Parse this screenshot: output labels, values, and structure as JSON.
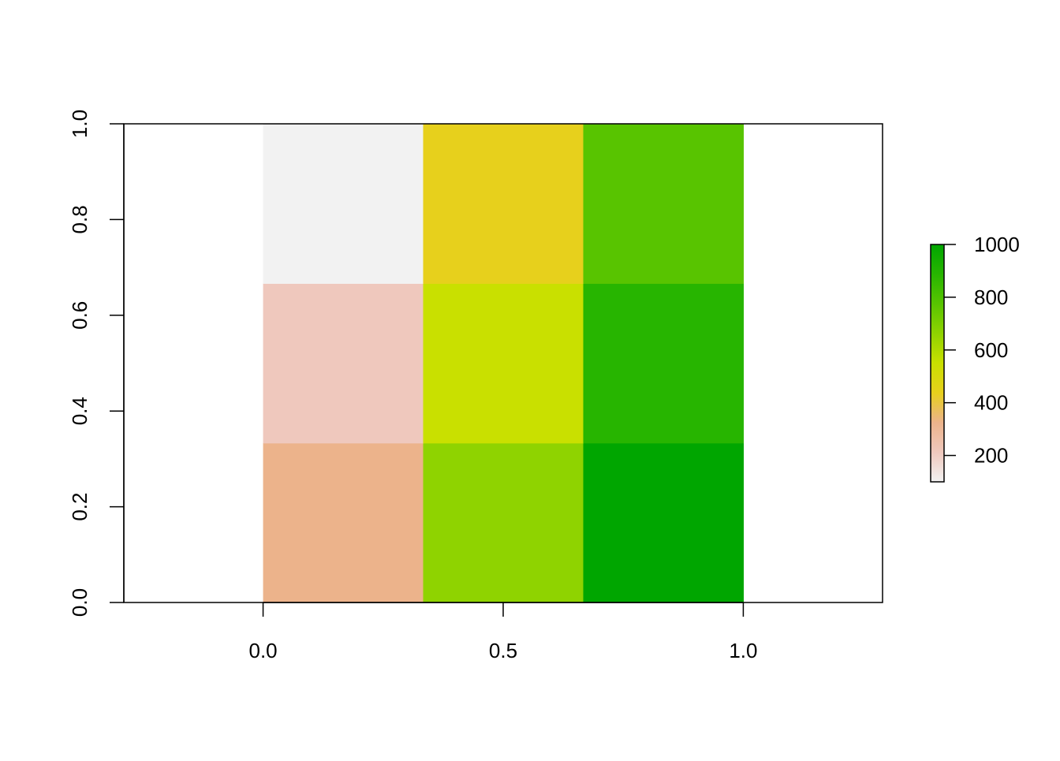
{
  "chart_data": {
    "type": "heatmap",
    "title": "",
    "xlabel": "",
    "ylabel": "",
    "xlim": [
      -0.29,
      1.29
    ],
    "ylim": [
      0,
      1
    ],
    "x_ticks": [
      "0.0",
      "0.5",
      "1.0"
    ],
    "x_tick_values": [
      0,
      0.5,
      1
    ],
    "y_ticks": [
      "0.0",
      "0.2",
      "0.4",
      "0.6",
      "0.8",
      "1.0"
    ],
    "y_tick_values": [
      0,
      0.2,
      0.4,
      0.6,
      0.8,
      1
    ],
    "grid": false,
    "x_edges": [
      0,
      0.3333,
      0.6667,
      1
    ],
    "y_edges": [
      0,
      0.3333,
      0.6667,
      1
    ],
    "cells": [
      {
        "row": 0,
        "col": 0,
        "value": 300,
        "color": "#ecb38b"
      },
      {
        "row": 0,
        "col": 1,
        "value": 800,
        "color": "#8fd300"
      },
      {
        "row": 0,
        "col": 2,
        "value": 1000,
        "color": "#00a600"
      },
      {
        "row": 1,
        "col": 0,
        "value": 200,
        "color": "#efc8bd"
      },
      {
        "row": 1,
        "col": 1,
        "value": 600,
        "color": "#c9e000"
      },
      {
        "row": 1,
        "col": 2,
        "value": 900,
        "color": "#27b500"
      },
      {
        "row": 2,
        "col": 0,
        "value": 100,
        "color": "#f2f2f2"
      },
      {
        "row": 2,
        "col": 1,
        "value": 500,
        "color": "#e7d01c"
      },
      {
        "row": 2,
        "col": 2,
        "value": 800,
        "color": "#58c400"
      }
    ],
    "legend": {
      "placement": "right",
      "range": [
        100,
        1000
      ],
      "ticks": [
        "200",
        "400",
        "600",
        "800",
        "1000"
      ],
      "tick_values": [
        200,
        400,
        600,
        800,
        1000
      ],
      "gradient": [
        "#f2f2f2",
        "#efc8bd",
        "#ecb38b",
        "#e7d01c",
        "#c9e000",
        "#8fd300",
        "#58c400",
        "#27b500",
        "#00a600"
      ]
    }
  }
}
